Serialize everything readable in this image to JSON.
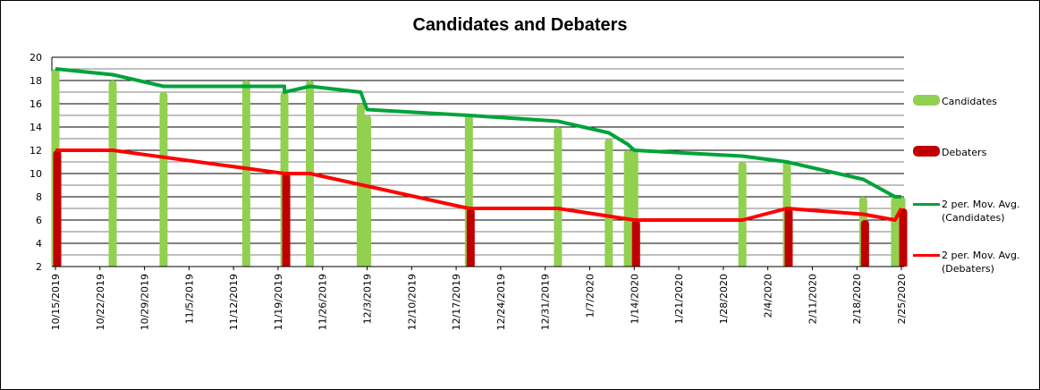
{
  "chart_data": {
    "type": "bar",
    "title": "Candidates and Debaters",
    "xlabel": "",
    "ylabel": "",
    "ylim": [
      2,
      20
    ],
    "y_ticks": [
      2,
      4,
      6,
      8,
      10,
      12,
      14,
      16,
      18,
      20
    ],
    "grid": true,
    "legend_position": "right",
    "x_tick_labels": [
      "10/15/2019",
      "10/22/2019",
      "10/29/2019",
      "11/5/2019",
      "11/12/2019",
      "11/19/2019",
      "11/26/2019",
      "12/3/2019",
      "12/10/2019",
      "12/17/2019",
      "12/24/2019",
      "12/31/2019",
      "1/7/2020",
      "1/14/2020",
      "1/21/2020",
      "1/28/2020",
      "2/4/2020",
      "2/11/2020",
      "2/18/2020",
      "2/25/2020"
    ],
    "series": [
      {
        "name": "Candidates",
        "kind": "bar",
        "color": "#92d050",
        "points": [
          {
            "date": "10/15/2019",
            "value": 19
          },
          {
            "date": "10/24/2019",
            "value": 18
          },
          {
            "date": "11/1/2019",
            "value": 17
          },
          {
            "date": "11/14/2019",
            "value": 18
          },
          {
            "date": "11/20/2019",
            "value": 17
          },
          {
            "date": "11/24/2019",
            "value": 18
          },
          {
            "date": "12/2/2019",
            "value": 16
          },
          {
            "date": "12/3/2019",
            "value": 15
          },
          {
            "date": "12/19/2019",
            "value": 15
          },
          {
            "date": "1/2/2020",
            "value": 14
          },
          {
            "date": "1/10/2020",
            "value": 13
          },
          {
            "date": "1/13/2020",
            "value": 12
          },
          {
            "date": "1/14/2020",
            "value": 12
          },
          {
            "date": "1/31/2020",
            "value": 11
          },
          {
            "date": "2/7/2020",
            "value": 11
          },
          {
            "date": "2/19/2020",
            "value": 8
          },
          {
            "date": "2/24/2020",
            "value": 8
          },
          {
            "date": "2/25/2020",
            "value": 8
          }
        ]
      },
      {
        "name": "Debaters",
        "kind": "bar",
        "color": "#c00000",
        "points": [
          {
            "date": "10/15/2019",
            "value": 12
          },
          {
            "date": "11/20/2019",
            "value": 10
          },
          {
            "date": "12/19/2019",
            "value": 7
          },
          {
            "date": "1/14/2020",
            "value": 6
          },
          {
            "date": "2/7/2020",
            "value": 7
          },
          {
            "date": "2/19/2020",
            "value": 6
          },
          {
            "date": "2/25/2020",
            "value": 7
          }
        ]
      },
      {
        "name": "2 per. Mov. Avg. (Candidates)",
        "kind": "line",
        "color": "#00a33a",
        "points": [
          {
            "date": "10/15/2019",
            "value": 19
          },
          {
            "date": "10/24/2019",
            "value": 18.5
          },
          {
            "date": "11/1/2019",
            "value": 17.5
          },
          {
            "date": "11/14/2019",
            "value": 17.5
          },
          {
            "date": "11/20/2019",
            "value": 17.5
          },
          {
            "date": "11/20/2019",
            "value": 17
          },
          {
            "date": "11/24/2019",
            "value": 17.5
          },
          {
            "date": "12/2/2019",
            "value": 17
          },
          {
            "date": "12/3/2019",
            "value": 15.5
          },
          {
            "date": "12/19/2019",
            "value": 15
          },
          {
            "date": "1/2/2020",
            "value": 14.5
          },
          {
            "date": "1/10/2020",
            "value": 13.5
          },
          {
            "date": "1/13/2020",
            "value": 12.5
          },
          {
            "date": "1/14/2020",
            "value": 12
          },
          {
            "date": "1/31/2020",
            "value": 11.5
          },
          {
            "date": "2/7/2020",
            "value": 11
          },
          {
            "date": "2/19/2020",
            "value": 9.5
          },
          {
            "date": "2/24/2020",
            "value": 8
          },
          {
            "date": "2/25/2020",
            "value": 8
          }
        ]
      },
      {
        "name": "2 per. Mov. Avg. (Debaters)",
        "kind": "line",
        "color": "#ff0000",
        "points": [
          {
            "date": "10/15/2019",
            "value": 12
          },
          {
            "date": "10/24/2019",
            "value": 12
          },
          {
            "date": "11/20/2019",
            "value": 10
          },
          {
            "date": "11/24/2019",
            "value": 10
          },
          {
            "date": "12/19/2019",
            "value": 7
          },
          {
            "date": "1/2/2020",
            "value": 7
          },
          {
            "date": "1/14/2020",
            "value": 6
          },
          {
            "date": "1/31/2020",
            "value": 6
          },
          {
            "date": "2/7/2020",
            "value": 7
          },
          {
            "date": "2/19/2020",
            "value": 6.5
          },
          {
            "date": "2/24/2020",
            "value": 6
          },
          {
            "date": "2/25/2020",
            "value": 7
          }
        ]
      }
    ]
  },
  "legend": {
    "items": [
      {
        "label": "Candidates",
        "color": "#92d050",
        "kind": "bar"
      },
      {
        "label": "Debaters",
        "color": "#c00000",
        "kind": "bar"
      },
      {
        "label": "2 per. Mov. Avg.\n(Candidates)",
        "color": "#00a33a",
        "kind": "line"
      },
      {
        "label": "2 per. Mov. Avg.\n(Debaters)",
        "color": "#ff0000",
        "kind": "line"
      }
    ]
  }
}
